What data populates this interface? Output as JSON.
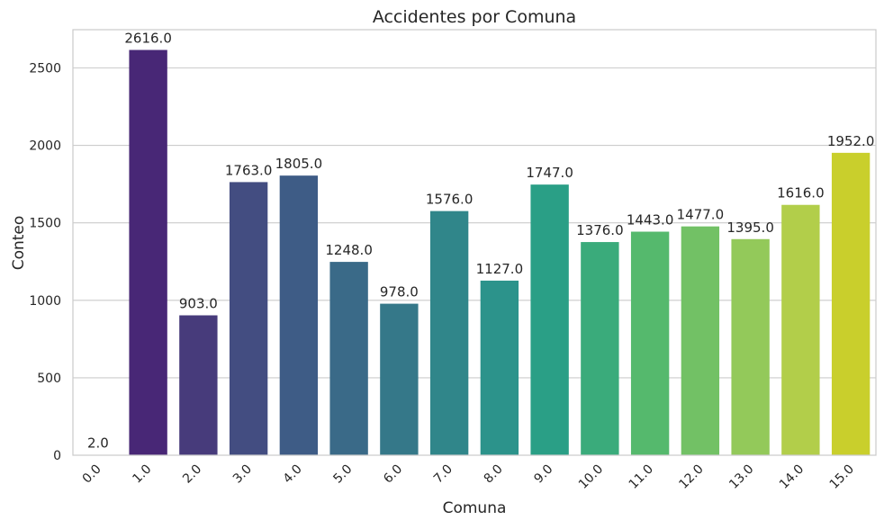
{
  "chart_data": {
    "type": "bar",
    "title": "Accidentes por Comuna",
    "xlabel": "Comuna",
    "ylabel": "Conteo",
    "categories": [
      "0.0",
      "1.0",
      "2.0",
      "3.0",
      "4.0",
      "5.0",
      "6.0",
      "7.0",
      "8.0",
      "9.0",
      "10.0",
      "11.0",
      "12.0",
      "13.0",
      "14.0",
      "15.0"
    ],
    "values": [
      2,
      2616,
      903,
      1763,
      1805,
      1248,
      978,
      1576,
      1127,
      1747,
      1376,
      1443,
      1477,
      1395,
      1616,
      1952
    ],
    "value_labels": [
      "2.0",
      "2616.0",
      "903.0",
      "1763.0",
      "1805.0",
      "1248.0",
      "978.0",
      "1576.0",
      "1127.0",
      "1747.0",
      "1376.0",
      "1443.0",
      "1477.0",
      "1395.0",
      "1616.0",
      "1952.0"
    ],
    "yticks": [
      0,
      500,
      1000,
      1500,
      2000,
      2500
    ],
    "ytick_labels": [
      "0",
      "500",
      "1000",
      "1500",
      "2000",
      "2500"
    ],
    "ylim": [
      0,
      2746.8
    ],
    "grid": true,
    "palette": "viridis",
    "colors": [
      "#46196a",
      "#482776",
      "#473b7b",
      "#434d81",
      "#3e5c86",
      "#3a6a88",
      "#357889",
      "#30868a",
      "#2c938b",
      "#2a9f86",
      "#3aab7b",
      "#55b96d",
      "#72c165",
      "#93c95a",
      "#b2ce4a",
      "#c9cf2c"
    ]
  }
}
